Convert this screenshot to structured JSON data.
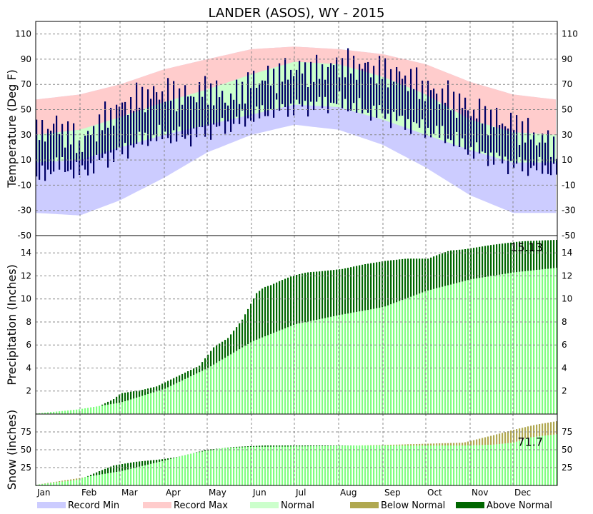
{
  "chart_data": {
    "type": "area",
    "title": "LANDER (ASOS), WY - 2015",
    "months": [
      "Jan",
      "Feb",
      "Mar",
      "Apr",
      "May",
      "Jun",
      "Jul",
      "Aug",
      "Sep",
      "Oct",
      "Nov",
      "Dec"
    ],
    "legend": [
      {
        "label": "Record Min",
        "color": "#ccccff"
      },
      {
        "label": "Record Max",
        "color": "#ffcccc"
      },
      {
        "label": "Normal",
        "color": "#ccffcc"
      },
      {
        "label": "Below Normal",
        "color": "#b0a850"
      },
      {
        "label": "Above Normal",
        "color": "#006600"
      }
    ],
    "colors": {
      "record_min": "#ccccff",
      "record_max": "#ffcccc",
      "normal_band": "#ccffcc",
      "observed_temp": "#000066",
      "normal_cumulative": "#80ff80",
      "below_normal": "#b0a850",
      "above_normal": "#006600"
    },
    "panels": [
      {
        "id": "temperature",
        "ylabel": "Temperature (Deg F)",
        "ylim": [
          -50,
          120
        ],
        "yticks": [
          -50,
          -30,
          -10,
          10,
          30,
          50,
          70,
          90,
          110
        ],
        "series": {
          "record_max": {
            "day": [
              1,
              32,
              60,
              91,
              121,
              152,
              182,
              213,
              244,
              274,
              305,
              335,
              365
            ],
            "value": [
              58,
              62,
              70,
              82,
              90,
              98,
              100,
              98,
              94,
              86,
              72,
              62,
              58
            ]
          },
          "normal_high": {
            "day": [
              1,
              32,
              60,
              91,
              121,
              152,
              182,
              213,
              244,
              274,
              305,
              335,
              365
            ],
            "value": [
              30,
              34,
              44,
              56,
              66,
              78,
              88,
              86,
              76,
              62,
              42,
              32,
              30
            ]
          },
          "normal_low": {
            "day": [
              1,
              32,
              60,
              91,
              121,
              152,
              182,
              213,
              244,
              274,
              305,
              335,
              365
            ],
            "value": [
              8,
              10,
              20,
              30,
              38,
              46,
              54,
              52,
              42,
              30,
              18,
              8,
              8
            ]
          },
          "record_min": {
            "day": [
              1,
              32,
              60,
              91,
              121,
              152,
              182,
              213,
              244,
              274,
              305,
              335,
              365
            ],
            "value": [
              -32,
              -34,
              -22,
              -4,
              16,
              30,
              38,
              34,
              22,
              4,
              -18,
              -32,
              -32
            ]
          },
          "observed_high": {
            "day": [
              1,
              15,
              32,
              46,
              60,
              75,
              91,
              106,
              121,
              136,
              152,
              167,
              182,
              197,
              213,
              228,
              244,
              259,
              274,
              289,
              305,
              320,
              335,
              350,
              365
            ],
            "value": [
              30,
              38,
              22,
              40,
              52,
              60,
              64,
              60,
              66,
              58,
              72,
              76,
              82,
              80,
              86,
              84,
              80,
              76,
              66,
              60,
              50,
              42,
              38,
              28,
              22
            ]
          },
          "observed_low": {
            "day": [
              1,
              15,
              32,
              46,
              60,
              75,
              91,
              106,
              121,
              136,
              152,
              167,
              182,
              197,
              213,
              228,
              244,
              259,
              274,
              289,
              305,
              320,
              335,
              350,
              365
            ],
            "value": [
              -6,
              6,
              0,
              10,
              16,
              26,
              30,
              28,
              34,
              38,
              44,
              50,
              52,
              54,
              56,
              50,
              46,
              40,
              34,
              28,
              18,
              12,
              6,
              4,
              2
            ]
          }
        }
      },
      {
        "id": "precipitation",
        "ylabel": "Precipitation (Inches)",
        "ylim": [
          0,
          15.5
        ],
        "yticks": [
          2,
          4,
          6,
          8,
          10,
          12,
          14
        ],
        "annotation": "15.13",
        "series": {
          "observed": {
            "day": [
              1,
              30,
              45,
              55,
              60,
              75,
              85,
              95,
              105,
              115,
              125,
              135,
              145,
              155,
              160,
              165,
              172,
              180,
              190,
              200,
              215,
              230,
              245,
              260,
              275,
              290,
              300,
              320,
              340,
              365
            ],
            "value": [
              0.05,
              0.4,
              0.7,
              1.3,
              1.8,
              2.1,
              2.4,
              3.0,
              3.6,
              4.2,
              5.8,
              6.6,
              8.2,
              10.5,
              11.0,
              11.2,
              11.6,
              12.0,
              12.3,
              12.4,
              12.6,
              13.0,
              13.3,
              13.5,
              13.5,
              14.2,
              14.3,
              14.7,
              15.0,
              15.13
            ]
          },
          "normal": {
            "day": [
              1,
              30,
              60,
              91,
              121,
              152,
              182,
              213,
              244,
              274,
              305,
              335,
              365
            ],
            "value": [
              0.05,
              0.4,
              1.0,
              2.2,
              4.0,
              6.3,
              7.8,
              8.6,
              9.3,
              10.7,
              11.7,
              12.3,
              12.7
            ]
          }
        }
      },
      {
        "id": "snow",
        "ylabel": "Snow (inches)",
        "ylim": [
          0,
          100
        ],
        "yticks": [
          25,
          50,
          75
        ],
        "annotation": "71.7",
        "series": {
          "observed": {
            "day": [
              1,
              30,
              38,
              45,
              55,
              70,
              90,
              100,
              110,
              120,
              130,
              140,
              150,
              160,
              200,
              250,
              300,
              320,
              335,
              345,
              365
            ],
            "value": [
              1,
              8,
              14,
              20,
              28,
              33,
              37,
              40,
              45,
              50,
              52,
              54,
              55,
              56,
              56,
              56,
              56,
              57,
              60,
              67,
              71.7
            ]
          },
          "normal": {
            "day": [
              1,
              30,
              60,
              91,
              110,
              130,
              150,
              200,
              250,
              300,
              320,
              335,
              350,
              365
            ],
            "value": [
              1,
              10,
              20,
              35,
              45,
              52,
              54,
              55,
              57,
              60,
              70,
              78,
              85,
              90
            ]
          }
        }
      }
    ]
  }
}
